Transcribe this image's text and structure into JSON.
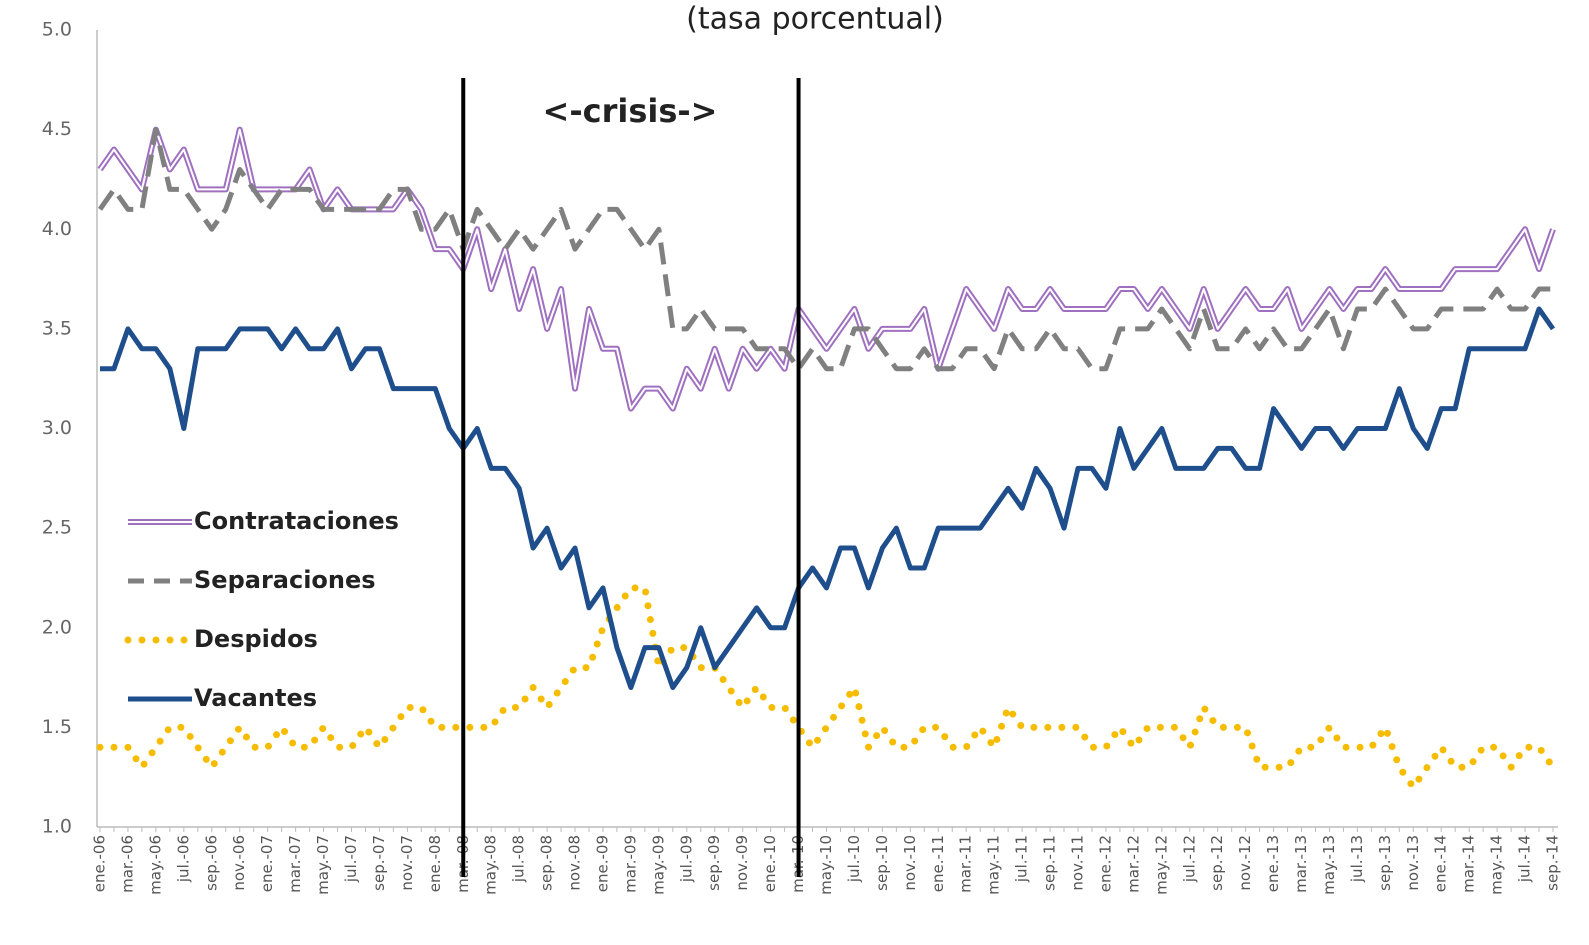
{
  "chart_data": {
    "type": "line",
    "title": "(tasa porcentual)",
    "annotation": "<-crisis->",
    "annotation_lines": [
      "mar.-08",
      "mar.-10"
    ],
    "categories": [
      "ene.-06",
      null,
      "mar.-06",
      null,
      "may.-06",
      null,
      "jul.-06",
      null,
      "sep.-06",
      null,
      "nov.-06",
      null,
      "ene.-07",
      null,
      "mar.-07",
      null,
      "may.-07",
      null,
      "jul.-07",
      null,
      "sep.-07",
      null,
      "nov.-07",
      null,
      "ene.-08",
      null,
      "mar.-08",
      null,
      "may.-08",
      null,
      "jul.-08",
      null,
      "sep.-08",
      null,
      "nov.-08",
      null,
      "ene.-09",
      null,
      "mar.-09",
      null,
      "may.-09",
      null,
      "jul.-09",
      null,
      "sep.-09",
      null,
      "nov.-09",
      null,
      "ene.-10",
      null,
      "mar.-10",
      null,
      "may.-10",
      null,
      "jul.-10",
      null,
      "sep.-10",
      null,
      "nov.-10",
      null,
      "ene.-11",
      null,
      "mar.-11",
      null,
      "may.-11",
      null,
      "jul.-11",
      null,
      "sep.-11",
      null,
      "nov.-11",
      null,
      "ene.-12",
      null,
      "mar.-12",
      null,
      "may.-12",
      null,
      "jul.-12",
      null,
      "sep.-12",
      null,
      "nov.-12",
      null,
      "ene.-13",
      null,
      "mar.-13",
      null,
      "may.-13",
      null,
      "jul.-13",
      null,
      "sep.-13",
      null,
      "nov.-13",
      null,
      "ene.-14",
      null,
      "mar.-14",
      null,
      "may.-14",
      null,
      "jul.-14",
      null,
      "sep.-14"
    ],
    "series": [
      {
        "name": "Contrataciones",
        "color": "#a070c0",
        "line_style": "double",
        "values": [
          4.3,
          4.4,
          4.3,
          4.2,
          4.5,
          4.3,
          4.4,
          4.2,
          4.2,
          4.2,
          4.5,
          4.2,
          4.2,
          4.2,
          4.2,
          4.3,
          4.1,
          4.2,
          4.1,
          4.1,
          4.1,
          4.1,
          4.2,
          4.1,
          3.9,
          3.9,
          3.8,
          4.0,
          3.7,
          3.9,
          3.6,
          3.8,
          3.5,
          3.7,
          3.2,
          3.6,
          3.4,
          3.4,
          3.1,
          3.2,
          3.2,
          3.1,
          3.3,
          3.2,
          3.4,
          3.2,
          3.4,
          3.3,
          3.4,
          3.3,
          3.6,
          3.5,
          3.4,
          3.5,
          3.6,
          3.4,
          3.5,
          3.5,
          3.5,
          3.6,
          3.3,
          3.5,
          3.7,
          3.6,
          3.5,
          3.7,
          3.6,
          3.6,
          3.7,
          3.6,
          3.6,
          3.6,
          3.6,
          3.7,
          3.7,
          3.6,
          3.7,
          3.6,
          3.5,
          3.7,
          3.5,
          3.6,
          3.7,
          3.6,
          3.6,
          3.7,
          3.5,
          3.6,
          3.7,
          3.6,
          3.7,
          3.7,
          3.8,
          3.7,
          3.7,
          3.7,
          3.7,
          3.8,
          3.8,
          3.8,
          3.8,
          3.9,
          4.0,
          3.8,
          4.0
        ]
      },
      {
        "name": "Separaciones",
        "color": "#808080",
        "line_style": "dashed",
        "values": [
          4.1,
          4.2,
          4.1,
          4.1,
          4.5,
          4.2,
          4.2,
          4.1,
          4.0,
          4.1,
          4.3,
          4.2,
          4.1,
          4.2,
          4.2,
          4.2,
          4.1,
          4.1,
          4.1,
          4.1,
          4.1,
          4.2,
          4.2,
          4.0,
          4.0,
          4.1,
          3.9,
          4.1,
          4.0,
          3.9,
          4.0,
          3.9,
          4.0,
          4.1,
          3.9,
          4.0,
          4.1,
          4.1,
          4.0,
          3.9,
          4.0,
          3.5,
          3.5,
          3.6,
          3.5,
          3.5,
          3.5,
          3.4,
          3.4,
          3.4,
          3.3,
          3.4,
          3.3,
          3.3,
          3.5,
          3.5,
          3.4,
          3.3,
          3.3,
          3.4,
          3.3,
          3.3,
          3.4,
          3.4,
          3.3,
          3.5,
          3.4,
          3.4,
          3.5,
          3.4,
          3.4,
          3.3,
          3.3,
          3.5,
          3.5,
          3.5,
          3.6,
          3.5,
          3.4,
          3.6,
          3.4,
          3.4,
          3.5,
          3.4,
          3.5,
          3.4,
          3.4,
          3.5,
          3.6,
          3.4,
          3.6,
          3.6,
          3.7,
          3.6,
          3.5,
          3.5,
          3.6,
          3.6,
          3.6,
          3.6,
          3.7,
          3.6,
          3.6,
          3.7,
          3.7
        ]
      },
      {
        "name": "Despidos",
        "color": "#f5bc00",
        "line_style": "dotted",
        "values": [
          1.4,
          1.4,
          1.4,
          1.3,
          1.4,
          1.5,
          1.5,
          1.4,
          1.3,
          1.4,
          1.5,
          1.4,
          1.4,
          1.5,
          1.4,
          1.4,
          1.5,
          1.4,
          1.4,
          1.5,
          1.4,
          1.5,
          1.6,
          1.6,
          1.5,
          1.5,
          1.5,
          1.5,
          1.5,
          1.6,
          1.6,
          1.7,
          1.6,
          1.7,
          1.8,
          1.8,
          2.0,
          2.1,
          2.2,
          2.2,
          1.8,
          1.9,
          1.9,
          1.8,
          1.8,
          1.7,
          1.6,
          1.7,
          1.6,
          1.6,
          1.5,
          1.4,
          1.5,
          1.6,
          1.7,
          1.4,
          1.5,
          1.4,
          1.4,
          1.5,
          1.5,
          1.4,
          1.4,
          1.5,
          1.4,
          1.6,
          1.5,
          1.5,
          1.5,
          1.5,
          1.5,
          1.4,
          1.4,
          1.5,
          1.4,
          1.5,
          1.5,
          1.5,
          1.4,
          1.6,
          1.5,
          1.5,
          1.5,
          1.3,
          1.3,
          1.3,
          1.4,
          1.4,
          1.5,
          1.4,
          1.4,
          1.4,
          1.5,
          1.3,
          1.2,
          1.3,
          1.4,
          1.3,
          1.3,
          1.4,
          1.4,
          1.3,
          1.4,
          1.4,
          1.3
        ]
      },
      {
        "name": "Vacantes",
        "color": "#1f4e8c",
        "line_style": "solid",
        "values": [
          3.3,
          3.3,
          3.5,
          3.4,
          3.4,
          3.3,
          3.0,
          3.4,
          3.4,
          3.4,
          3.5,
          3.5,
          3.5,
          3.4,
          3.5,
          3.4,
          3.4,
          3.5,
          3.3,
          3.4,
          3.4,
          3.2,
          3.2,
          3.2,
          3.2,
          3.0,
          2.9,
          3.0,
          2.8,
          2.8,
          2.7,
          2.4,
          2.5,
          2.3,
          2.4,
          2.1,
          2.2,
          1.9,
          1.7,
          1.9,
          1.9,
          1.7,
          1.8,
          2.0,
          1.8,
          1.9,
          2.0,
          2.1,
          2.0,
          2.0,
          2.2,
          2.3,
          2.2,
          2.4,
          2.4,
          2.2,
          2.4,
          2.5,
          2.3,
          2.3,
          2.5,
          2.5,
          2.5,
          2.5,
          2.6,
          2.7,
          2.6,
          2.8,
          2.7,
          2.5,
          2.8,
          2.8,
          2.7,
          3.0,
          2.8,
          2.9,
          3.0,
          2.8,
          2.8,
          2.8,
          2.9,
          2.9,
          2.8,
          2.8,
          3.1,
          3.0,
          2.9,
          3.0,
          3.0,
          2.9,
          3.0,
          3.0,
          3.0,
          3.2,
          3.0,
          2.9,
          3.1,
          3.1,
          3.4,
          3.4,
          3.4,
          3.4,
          3.4,
          3.6,
          3.5
        ]
      }
    ],
    "ylim": [
      1,
      5
    ],
    "yticks": [
      {
        "value": 1,
        "label": "1.0"
      },
      {
        "value": 1.5,
        "label": "1.5"
      },
      {
        "value": 2,
        "label": "2.0"
      },
      {
        "value": 2.5,
        "label": "2.5"
      },
      {
        "value": 3,
        "label": "3.0"
      },
      {
        "value": 3.5,
        "label": "3.5"
      },
      {
        "value": 4,
        "label": "4.0"
      },
      {
        "value": 4.5,
        "label": "4.5"
      },
      {
        "value": 5,
        "label": "5.0"
      }
    ],
    "grid": false,
    "legend": "left"
  }
}
